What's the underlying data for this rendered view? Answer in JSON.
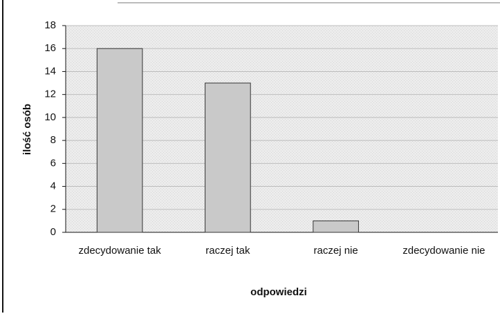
{
  "chart_data": {
    "type": "bar",
    "categories": [
      "zdecydowanie tak",
      "raczej tak",
      "raczej nie",
      "zdecydowanie nie"
    ],
    "values": [
      16,
      13,
      1,
      0
    ],
    "color": "#c9c9c9",
    "x_label": "odpowiedzi",
    "y_label": "ilość osób",
    "ylim": [
      0,
      18
    ],
    "yticks": [
      0,
      2,
      4,
      6,
      8,
      10,
      12,
      14,
      16,
      18
    ],
    "grid": true
  }
}
